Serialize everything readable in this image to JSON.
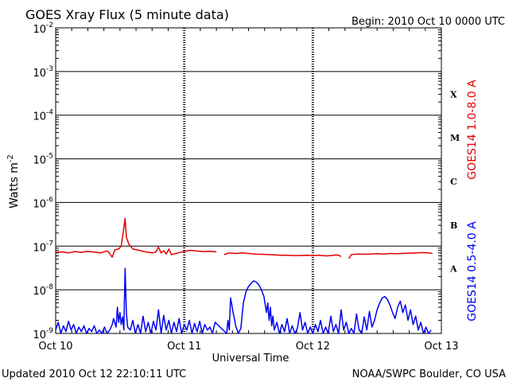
{
  "header": {
    "title": "GOES Xray Flux (5 minute data)",
    "begin": "Begin:  2010 Oct 10 0000 UTC"
  },
  "footer": {
    "updated": "Updated 2010 Oct 12 22:10:11 UTC",
    "credit": "NOAA/SWPC Boulder, CO USA"
  },
  "chart_data": {
    "type": "line",
    "title": "GOES Xray Flux (5 minute data)",
    "xlabel": "Universal Time",
    "ylabel": "Watts m",
    "ylabel_superscript": "-2",
    "y_scale": "log",
    "ylim": [
      1e-09,
      0.01
    ],
    "y_ticks": [
      {
        "base": "10",
        "exp": "-2"
      },
      {
        "base": "10",
        "exp": "-3"
      },
      {
        "base": "10",
        "exp": "-4"
      },
      {
        "base": "10",
        "exp": "-5"
      },
      {
        "base": "10",
        "exp": "-6"
      },
      {
        "base": "10",
        "exp": "-7"
      },
      {
        "base": "10",
        "exp": "-8"
      },
      {
        "base": "10",
        "exp": "-9"
      }
    ],
    "x_ticks": [
      "Oct 10",
      "Oct 11",
      "Oct 12",
      "Oct 13"
    ],
    "xlim_days": [
      0,
      3
    ],
    "flare_classes": [
      {
        "label": "X",
        "level": 0.0001
      },
      {
        "label": "M",
        "level": 1e-05
      },
      {
        "label": "C",
        "level": 1e-06
      },
      {
        "label": "B",
        "level": 1e-07
      },
      {
        "label": "A",
        "level": 1e-08
      }
    ],
    "grid": true,
    "series": [
      {
        "name": "GOES14 1.0-8.0 A",
        "color": "#e00000",
        "points": [
          [
            0.0,
            7.2e-08
          ],
          [
            0.05,
            7.4e-08
          ],
          [
            0.1,
            7e-08
          ],
          [
            0.15,
            7.5e-08
          ],
          [
            0.2,
            7.2e-08
          ],
          [
            0.25,
            7.6e-08
          ],
          [
            0.3,
            7.3e-08
          ],
          [
            0.35,
            7e-08
          ],
          [
            0.4,
            7.8e-08
          ],
          [
            0.42,
            6.8e-08
          ],
          [
            0.44,
            5.6e-08
          ],
          [
            0.46,
            8.2e-08
          ],
          [
            0.49,
            8.6e-08
          ],
          [
            0.51,
            1e-07
          ],
          [
            0.53,
            2.6e-07
          ],
          [
            0.54,
            4.3e-07
          ],
          [
            0.55,
            1.6e-07
          ],
          [
            0.57,
            1.1e-07
          ],
          [
            0.6,
            8.6e-08
          ],
          [
            0.65,
            8e-08
          ],
          [
            0.7,
            7.4e-08
          ],
          [
            0.75,
            7e-08
          ],
          [
            0.78,
            7.4e-08
          ],
          [
            0.8,
            9.5e-08
          ],
          [
            0.82,
            7e-08
          ],
          [
            0.84,
            7.8e-08
          ],
          [
            0.86,
            6.6e-08
          ],
          [
            0.88,
            8.6e-08
          ],
          [
            0.9,
            6.4e-08
          ],
          [
            0.95,
            7e-08
          ],
          [
            1.0,
            7.6e-08
          ],
          [
            1.05,
            8e-08
          ],
          [
            1.1,
            7.7e-08
          ],
          [
            1.15,
            7.5e-08
          ],
          [
            1.2,
            7.6e-08
          ],
          [
            1.25,
            7.4e-08
          ],
          null,
          [
            1.31,
            6.4e-08
          ],
          [
            1.35,
            7e-08
          ],
          [
            1.4,
            6.8e-08
          ],
          [
            1.45,
            7e-08
          ],
          [
            1.5,
            6.8e-08
          ],
          [
            1.55,
            6.6e-08
          ],
          [
            1.6,
            6.5e-08
          ],
          [
            1.65,
            6.4e-08
          ],
          [
            1.7,
            6.3e-08
          ],
          [
            1.75,
            6.2e-08
          ],
          [
            1.8,
            6.2e-08
          ],
          [
            1.85,
            6.1e-08
          ],
          [
            1.9,
            6.1e-08
          ],
          [
            1.95,
            6.2e-08
          ],
          [
            2.0,
            6.1e-08
          ],
          [
            2.05,
            6.2e-08
          ],
          [
            2.1,
            6e-08
          ],
          [
            2.15,
            6.1e-08
          ],
          [
            2.18,
            6.3e-08
          ],
          [
            2.2,
            6.2e-08
          ],
          [
            2.22,
            5.8e-08
          ],
          null,
          [
            2.28,
            5.2e-08
          ],
          [
            2.3,
            6.4e-08
          ],
          [
            2.35,
            6.6e-08
          ],
          [
            2.4,
            6.5e-08
          ],
          [
            2.45,
            6.6e-08
          ],
          [
            2.5,
            6.7e-08
          ],
          [
            2.55,
            6.6e-08
          ],
          [
            2.6,
            6.8e-08
          ],
          [
            2.65,
            6.7e-08
          ],
          [
            2.7,
            6.8e-08
          ],
          [
            2.75,
            6.9e-08
          ],
          [
            2.8,
            7e-08
          ],
          [
            2.85,
            7.1e-08
          ],
          [
            2.9,
            7e-08
          ],
          [
            2.93,
            6.8e-08
          ]
        ]
      },
      {
        "name": "GOES14 0.5-4.0 A",
        "color": "#0000ee",
        "points": [
          [
            0.0,
            1.2e-09
          ],
          [
            0.02,
            1.8e-09
          ],
          [
            0.04,
            1e-09
          ],
          [
            0.06,
            1.5e-09
          ],
          [
            0.08,
            1.1e-09
          ],
          [
            0.1,
            1.9e-09
          ],
          [
            0.12,
            1.2e-09
          ],
          [
            0.14,
            1.6e-09
          ],
          [
            0.16,
            1e-09
          ],
          [
            0.18,
            1.4e-09
          ],
          [
            0.2,
            1.1e-09
          ],
          [
            0.22,
            1.5e-09
          ],
          [
            0.24,
            1e-09
          ],
          [
            0.26,
            1.3e-09
          ],
          [
            0.28,
            1.1e-09
          ],
          [
            0.3,
            1.5e-09
          ],
          [
            0.32,
            1e-09
          ],
          [
            0.34,
            1.2e-09
          ],
          [
            0.36,
            1e-09
          ],
          [
            0.38,
            1.4e-09
          ],
          [
            0.4,
            1e-09
          ],
          [
            0.42,
            1.2e-09
          ],
          [
            0.44,
            1.6e-09
          ],
          [
            0.45,
            2.2e-09
          ],
          [
            0.47,
            1.4e-09
          ],
          [
            0.48,
            4e-09
          ],
          [
            0.49,
            1.8e-09
          ],
          [
            0.5,
            3e-09
          ],
          [
            0.51,
            1.6e-09
          ],
          [
            0.52,
            2.4e-09
          ],
          [
            0.53,
            1.2e-09
          ],
          [
            0.54,
            3.1e-08
          ],
          [
            0.55,
            3e-09
          ],
          [
            0.56,
            1.4e-09
          ],
          [
            0.58,
            1.2e-09
          ],
          [
            0.6,
            2e-09
          ],
          [
            0.62,
            1e-09
          ],
          [
            0.64,
            1.6e-09
          ],
          [
            0.66,
            1e-09
          ],
          [
            0.68,
            2.5e-09
          ],
          [
            0.7,
            1.1e-09
          ],
          [
            0.72,
            1.8e-09
          ],
          [
            0.74,
            1e-09
          ],
          [
            0.76,
            1.9e-09
          ],
          [
            0.78,
            1.2e-09
          ],
          [
            0.8,
            3.5e-09
          ],
          [
            0.82,
            1e-09
          ],
          [
            0.84,
            2.6e-09
          ],
          [
            0.86,
            1.2e-09
          ],
          [
            0.88,
            2e-09
          ],
          [
            0.9,
            1e-09
          ],
          [
            0.92,
            1.8e-09
          ],
          [
            0.94,
            1.1e-09
          ],
          [
            0.96,
            2.2e-09
          ],
          [
            0.98,
            1e-09
          ],
          [
            1.0,
            1.6e-09
          ],
          [
            1.02,
            1.2e-09
          ],
          [
            1.04,
            2e-09
          ],
          [
            1.06,
            1e-09
          ],
          [
            1.08,
            1.7e-09
          ],
          [
            1.1,
            1.1e-09
          ],
          [
            1.12,
            1.9e-09
          ],
          [
            1.14,
            1e-09
          ],
          [
            1.16,
            1.6e-09
          ],
          [
            1.18,
            1.2e-09
          ],
          [
            1.2,
            1.4e-09
          ],
          [
            1.22,
            1e-09
          ],
          [
            1.24,
            1.8e-09
          ],
          [
            1.33,
            1e-09
          ],
          [
            1.34,
            2e-09
          ],
          [
            1.35,
            1.2e-09
          ],
          [
            1.36,
            6.5e-09
          ],
          [
            1.37,
            4.5e-09
          ],
          [
            1.38,
            3e-09
          ],
          [
            1.39,
            2.2e-09
          ],
          [
            1.4,
            1.5e-09
          ],
          [
            1.42,
            1e-09
          ],
          [
            1.44,
            1.3e-09
          ],
          [
            1.46,
            5e-09
          ],
          [
            1.48,
            9e-09
          ],
          [
            1.5,
            1.2e-08
          ],
          [
            1.52,
            1.4e-08
          ],
          [
            1.54,
            1.6e-08
          ],
          [
            1.56,
            1.5e-08
          ],
          [
            1.58,
            1.3e-08
          ],
          [
            1.6,
            1e-08
          ],
          [
            1.62,
            7e-09
          ],
          [
            1.63,
            4.5e-09
          ],
          [
            1.64,
            3e-09
          ],
          [
            1.65,
            5e-09
          ],
          [
            1.66,
            2e-09
          ],
          [
            1.67,
            4e-09
          ],
          [
            1.68,
            1.5e-09
          ],
          [
            1.69,
            2.5e-09
          ],
          [
            1.7,
            1.2e-09
          ],
          [
            1.72,
            1.8e-09
          ],
          [
            1.74,
            1e-09
          ],
          [
            1.76,
            1.6e-09
          ],
          [
            1.78,
            1.1e-09
          ],
          [
            1.8,
            2.2e-09
          ],
          [
            1.82,
            1e-09
          ],
          [
            1.84,
            1.5e-09
          ],
          [
            1.86,
            1e-09
          ],
          [
            1.88,
            1.3e-09
          ],
          [
            1.9,
            3e-09
          ],
          [
            1.92,
            1.2e-09
          ],
          [
            1.94,
            1.8e-09
          ],
          [
            1.96,
            1e-09
          ],
          [
            1.98,
            1.4e-09
          ],
          [
            2.0,
            1e-09
          ],
          [
            2.02,
            1.6e-09
          ],
          [
            2.04,
            1.1e-09
          ],
          [
            2.06,
            2e-09
          ],
          [
            2.08,
            1e-09
          ],
          [
            2.1,
            1.4e-09
          ],
          [
            2.12,
            1e-09
          ],
          [
            2.14,
            2.5e-09
          ],
          [
            2.16,
            1.1e-09
          ],
          [
            2.18,
            1.6e-09
          ],
          [
            2.2,
            1e-09
          ],
          [
            2.22,
            3.5e-09
          ],
          [
            2.24,
            1.2e-09
          ],
          [
            2.26,
            1.8e-09
          ],
          [
            2.28,
            1e-09
          ],
          [
            2.3,
            1.3e-09
          ],
          [
            2.32,
            1e-09
          ],
          [
            2.34,
            2.8e-09
          ],
          [
            2.36,
            1.2e-09
          ],
          [
            2.38,
            1e-09
          ],
          [
            2.4,
            2.4e-09
          ],
          [
            2.42,
            1.2e-09
          ],
          [
            2.44,
            3.2e-09
          ],
          [
            2.46,
            1.4e-09
          ],
          [
            2.48,
            2e-09
          ],
          [
            2.5,
            3.5e-09
          ],
          [
            2.52,
            5e-09
          ],
          [
            2.54,
            6.5e-09
          ],
          [
            2.56,
            7e-09
          ],
          [
            2.58,
            6e-09
          ],
          [
            2.6,
            4.5e-09
          ],
          [
            2.62,
            3e-09
          ],
          [
            2.64,
            2.2e-09
          ],
          [
            2.66,
            4e-09
          ],
          [
            2.68,
            5.5e-09
          ],
          [
            2.7,
            3e-09
          ],
          [
            2.72,
            4.5e-09
          ],
          [
            2.74,
            2e-09
          ],
          [
            2.76,
            3.5e-09
          ],
          [
            2.78,
            1.6e-09
          ],
          [
            2.8,
            2.5e-09
          ],
          [
            2.82,
            1.2e-09
          ],
          [
            2.84,
            1.8e-09
          ],
          [
            2.86,
            1e-09
          ],
          [
            2.88,
            1.4e-09
          ],
          [
            2.9,
            1e-09
          ],
          [
            2.92,
            1.2e-09
          ]
        ]
      }
    ]
  }
}
